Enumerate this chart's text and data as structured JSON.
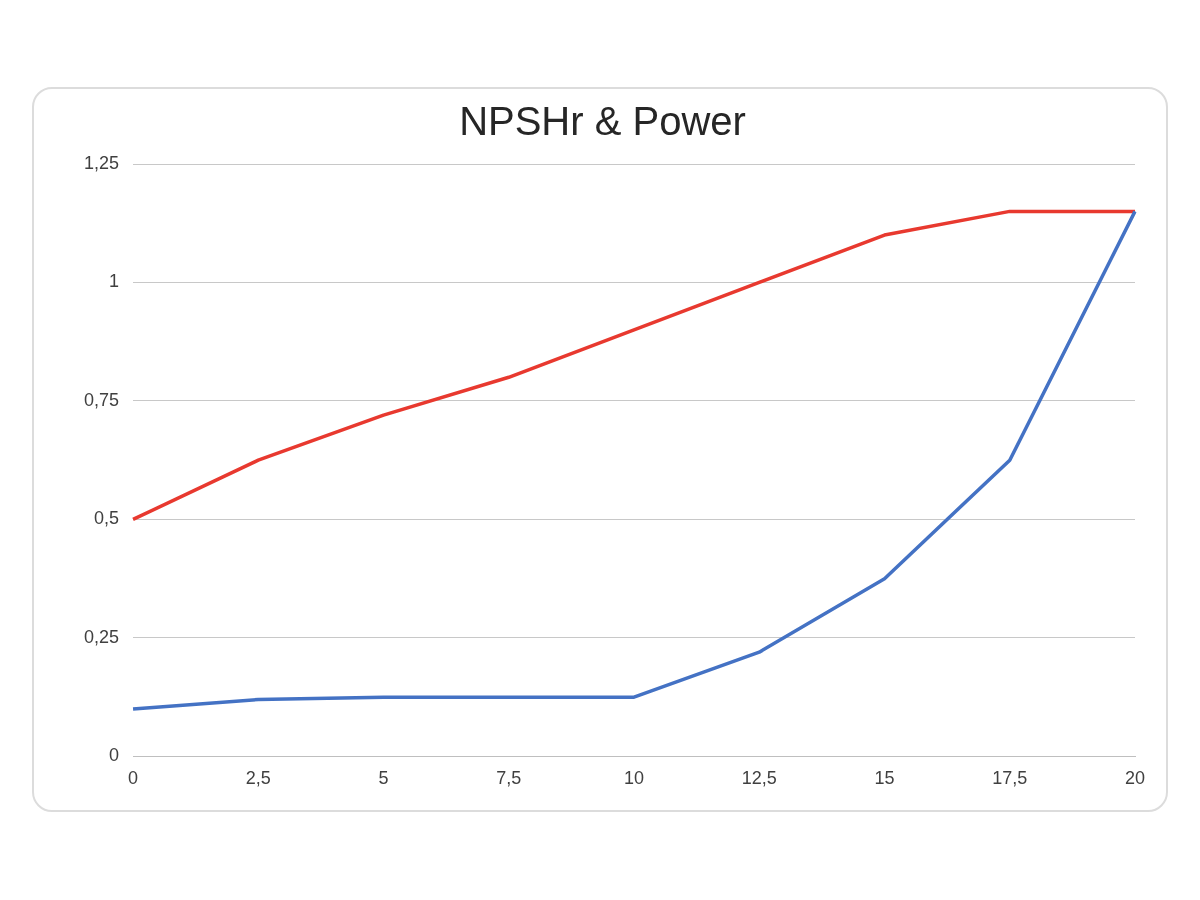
{
  "chart_data": {
    "type": "line",
    "title": "NPSHr & Power",
    "categories": [
      "0",
      "2,5",
      "5",
      "7,5",
      "10",
      "12,5",
      "15",
      "17,5",
      "20"
    ],
    "series": [
      {
        "color": "#4472c4",
        "values": [
          0.1,
          0.12,
          0.125,
          0.125,
          0.125,
          0.22,
          0.375,
          0.625,
          1.15
        ]
      },
      {
        "color": "#e8392f",
        "values": [
          0.5,
          0.625,
          0.72,
          0.8,
          0.9,
          1.0,
          1.1,
          1.15,
          1.15
        ]
      }
    ],
    "ylim": [
      0,
      1.25
    ],
    "yticks": [
      0,
      {
        "value": 0.25,
        "label": "0,25"
      },
      {
        "value": 0.5,
        "label": "0,5"
      },
      {
        "value": 0.75,
        "label": "0,75"
      },
      1,
      {
        "value": 1.25,
        "label": "1,25"
      }
    ],
    "grid": "y",
    "legend": false,
    "marker": "none",
    "line_style": "solid"
  }
}
